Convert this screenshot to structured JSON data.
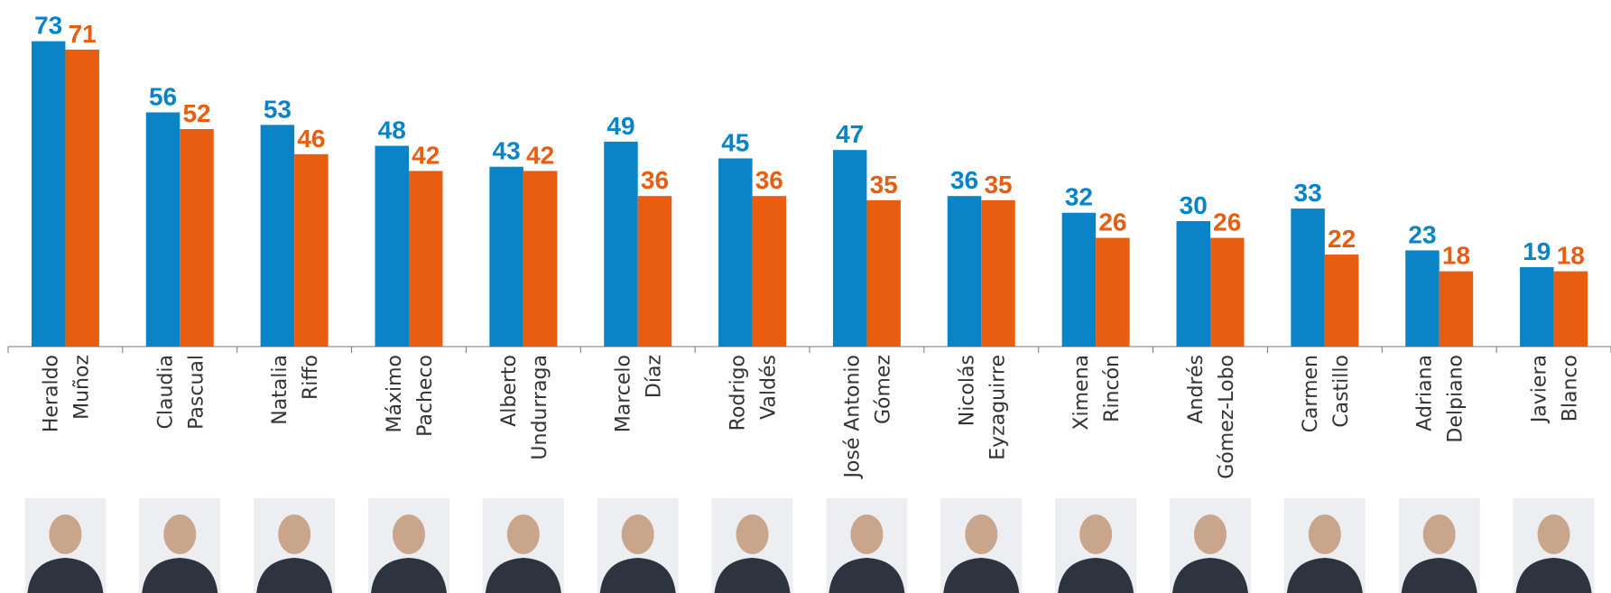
{
  "chart_data": {
    "type": "bar",
    "categories": [
      [
        "Heraldo",
        "Muñoz"
      ],
      [
        "Claudia",
        "Pascual"
      ],
      [
        "Natalia",
        "Riffo"
      ],
      [
        "Máximo",
        "Pacheco"
      ],
      [
        "Alberto",
        "Undurraga"
      ],
      [
        "Marcelo",
        "Díaz"
      ],
      [
        "Rodrigo",
        "Valdés"
      ],
      [
        "José Antonio",
        "Gómez"
      ],
      [
        "Nicolás",
        "Eyzaguirre"
      ],
      [
        "Ximena",
        "Rincón"
      ],
      [
        "Andrés",
        "Gómez-Lobo"
      ],
      [
        "Carmen",
        "Castillo"
      ],
      [
        "Adriana",
        "Delpiano"
      ],
      [
        "Javiera",
        "Blanco"
      ]
    ],
    "series": [
      {
        "color": "#0a84c6",
        "values": [
          73,
          56,
          53,
          48,
          43,
          49,
          45,
          47,
          36,
          32,
          30,
          33,
          23,
          19
        ]
      },
      {
        "color": "#e85d0f",
        "values": [
          71,
          52,
          46,
          42,
          42,
          36,
          36,
          35,
          35,
          26,
          26,
          22,
          18,
          18
        ]
      }
    ],
    "ylim": [
      0,
      82
    ]
  }
}
